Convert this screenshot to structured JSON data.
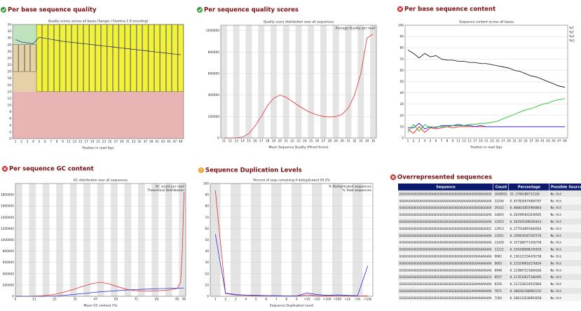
{
  "chart_data": [
    {
      "type": "boxplot",
      "heading": "Per base sequence quality",
      "title": "Quality scores across all bases (Sanger / Illumina 1.9 encoding)",
      "x_label": "Position in read (bp)",
      "categories": [
        "1",
        "2",
        "3",
        "4",
        "5",
        "6",
        "7",
        "8",
        "9",
        "11",
        "13",
        "15",
        "17",
        "19",
        "21",
        "23",
        "25",
        "27",
        "29",
        "31",
        "33",
        "35",
        "37",
        "39",
        "41",
        "43",
        "45",
        "47",
        "49"
      ],
      "bands": [
        {
          "from": 0,
          "to": 14,
          "color": "#e8b4b4"
        },
        {
          "from": 14,
          "to": 28,
          "color": "#e6d0a8"
        },
        {
          "from": 28,
          "to": 34,
          "color": "#bfe3bf"
        }
      ],
      "box_color": "#f2f23a",
      "box_low": [
        20,
        20,
        20,
        20,
        14,
        14,
        14,
        14,
        14,
        14,
        14,
        14,
        14,
        14,
        14,
        14,
        14,
        14,
        14,
        14,
        14,
        14,
        14,
        14,
        14,
        14,
        14,
        14,
        14
      ],
      "box_high": [
        28,
        28,
        28,
        28,
        34,
        34,
        34,
        34,
        34,
        34,
        34,
        34,
        34,
        34,
        34,
        34,
        34,
        34,
        34,
        34,
        34,
        34,
        34,
        34,
        34,
        34,
        34,
        34,
        34
      ],
      "line_color": "#202060",
      "mean": [
        29.5,
        28.8,
        28.5,
        28.3,
        30.2,
        29.9,
        29.6,
        29.3,
        29,
        28.8,
        28.6,
        28.4,
        28.2,
        28,
        27.8,
        27.6,
        27.4,
        27.2,
        27,
        26.8,
        26.6,
        26.4,
        26.2,
        26,
        25.8,
        25.6,
        25.4,
        25.2,
        25
      ],
      "ylim": [
        0,
        34
      ],
      "yticks": [
        0,
        2,
        4,
        6,
        8,
        10,
        12,
        14,
        16,
        18,
        20,
        22,
        24,
        26,
        28,
        30,
        32,
        34
      ]
    },
    {
      "type": "line",
      "heading": "Per sequence quality scores",
      "title": "Quality score distribution over all sequences",
      "x_label": "Mean Sequence Quality (Phred Score)",
      "categories": [
        "11",
        "12",
        "13",
        "14",
        "15",
        "16",
        "17",
        "18",
        "19",
        "20",
        "21",
        "22",
        "23",
        "24",
        "25",
        "26",
        "27",
        "28",
        "29",
        "30",
        "31",
        "32",
        "33",
        "34",
        "35"
      ],
      "series": [
        {
          "name": "Average Quality per read",
          "color": "#e03030",
          "values": [
            0,
            0,
            1000,
            8000,
            40000,
            110000,
            200000,
            300000,
            370000,
            400000,
            380000,
            340000,
            300000,
            265000,
            235000,
            215000,
            200000,
            195000,
            200000,
            220000,
            280000,
            400000,
            600000,
            930000,
            970000
          ]
        }
      ],
      "ylim": [
        0,
        1050000
      ],
      "yticks": [
        0,
        200000,
        400000,
        600000,
        800000,
        1000000
      ],
      "legend": "top-right",
      "grid": true
    },
    {
      "type": "line",
      "heading": "Per base sequence content",
      "title": "Sequence content across all bases",
      "x_label": "Position in read (bp)",
      "categories": [
        "1",
        "2",
        "3",
        "4",
        "5",
        "6",
        "7",
        "8",
        "9",
        "11",
        "13",
        "15",
        "17",
        "19",
        "21",
        "23",
        "25",
        "27",
        "29",
        "31",
        "33",
        "35",
        "37",
        "39",
        "41",
        "43",
        "45",
        "47",
        "49"
      ],
      "series": [
        {
          "name": "%T",
          "color": "#ff0000",
          "values": [
            8,
            4,
            10,
            5,
            9,
            8,
            9,
            10,
            9,
            10,
            10,
            10,
            10,
            10,
            10,
            10,
            10,
            10,
            10,
            10,
            10,
            10,
            10,
            10,
            10,
            10,
            10,
            10,
            10
          ]
        },
        {
          "name": "%C",
          "color": "#0000ff",
          "values": [
            9,
            9,
            13,
            8,
            10,
            9,
            11,
            11,
            11,
            12,
            11,
            11,
            10,
            11,
            10,
            10,
            10,
            10,
            10,
            10,
            10,
            10,
            10,
            10,
            10,
            10,
            10,
            10,
            10
          ]
        },
        {
          "name": "%A",
          "color": "#00c000",
          "values": [
            5,
            12,
            6,
            12,
            9,
            10,
            10,
            10,
            11,
            11,
            11,
            12,
            12,
            13,
            13,
            14,
            15,
            17,
            19,
            21,
            23,
            25,
            26,
            28,
            30,
            31,
            33,
            34,
            35
          ]
        },
        {
          "name": "%G",
          "color": "#000000",
          "values": [
            78,
            75,
            71,
            75,
            72,
            73,
            70,
            69,
            69,
            68,
            68,
            67,
            67,
            66,
            66,
            65,
            64,
            63,
            62,
            60,
            59,
            57,
            55,
            54,
            52,
            50,
            48,
            46,
            45
          ]
        }
      ],
      "ylim": [
        0,
        100
      ],
      "yticks": [
        0,
        10,
        20,
        30,
        40,
        50,
        60,
        70,
        80,
        90,
        100
      ],
      "legend": "right",
      "grid": true
    },
    {
      "type": "line",
      "heading": "Per sequence GC content",
      "title": "GC distribution over all sequences",
      "x_label": "Mean GC content (%)",
      "x": [
        0,
        5,
        10,
        15,
        20,
        25,
        30,
        35,
        40,
        45,
        50,
        55,
        60,
        65,
        70,
        75,
        80,
        85,
        90,
        95,
        97,
        98,
        99
      ],
      "series": [
        {
          "name": "GC count per read",
          "color": "#e03030",
          "values": [
            0,
            0,
            2000,
            8000,
            20000,
            45000,
            85000,
            130000,
            180000,
            225000,
            250000,
            220000,
            170000,
            125000,
            100000,
            95000,
            95000,
            100000,
            110000,
            140000,
            250000,
            800000,
            1850000
          ]
        },
        {
          "name": "Theoretical Distribution",
          "color": "#3030e0",
          "values": [
            0,
            0,
            0,
            0,
            2000,
            8000,
            20000,
            35000,
            50000,
            65000,
            80000,
            90000,
            100000,
            110000,
            118000,
            125000,
            130000,
            135000,
            140000,
            143000,
            145000,
            146000,
            147000
          ]
        }
      ],
      "xlim": [
        0,
        100
      ],
      "xticks": [
        0,
        11,
        23,
        35,
        47,
        59,
        71,
        83,
        95,
        99
      ],
      "ylim": [
        0,
        2000000
      ],
      "yticks": [
        0,
        200000,
        400000,
        600000,
        800000,
        1000000,
        1200000,
        1400000,
        1600000,
        1800000
      ],
      "legend": "top-right",
      "grid": true
    },
    {
      "type": "line",
      "heading": "Sequence Duplication Levels",
      "title": "Percent of seqs remaining if deduplicated 59.2%",
      "x_label": "Sequence Duplication Level",
      "categories": [
        "1",
        "2",
        "3",
        "4",
        "5",
        "6",
        "7",
        "8",
        "9",
        ">10",
        ">50",
        ">100",
        ">500",
        ">1k",
        ">5k",
        ">10k"
      ],
      "series": [
        {
          "name": "% Deduplicated sequences",
          "color": "#e03030",
          "values": [
            94,
            2.5,
            1.2,
            0.8,
            0.5,
            0.4,
            0.3,
            0.3,
            0.2,
            1.2,
            0.5,
            0.3,
            0.3,
            0.2,
            0.1,
            0.5
          ]
        },
        {
          "name": "% Total sequences",
          "color": "#3030e0",
          "values": [
            55,
            2.8,
            1.5,
            1,
            0.8,
            0.6,
            0.5,
            0.4,
            0.3,
            3,
            1.5,
            0.8,
            1.2,
            0.8,
            0.5,
            27
          ]
        }
      ],
      "ylim": [
        0,
        100
      ],
      "yticks": [
        0,
        10,
        20,
        30,
        40,
        50,
        60,
        70,
        80,
        90,
        100
      ],
      "legend": "top-right",
      "grid": true
    }
  ],
  "table": {
    "heading": "Overrepresented sequences",
    "columns": [
      "Sequence",
      "Count",
      "Percentage",
      "Possible Source"
    ],
    "rows": [
      [
        "GGGGGGGGGGGGGGGGGGGGGGGGGGGGGGGGGGGGGGGGGGGGGGGGGG",
        1838931,
        "25.2796180732126",
        "No Hit"
      ],
      [
        "AAAAAAAAAAAAAAAAAAAAAAAAAAAAAAAAAAAAAAAAAAAAAAAAAA",
        33246,
        "0.457026974004787",
        "No Hit"
      ],
      [
        "GGGGGGGGGGGGGGGGGGGGGGGGGGGGGGGGGGGGGGGGGGGGGGGGGA",
        29142,
        "0.400616855904864",
        "No Hit"
      ],
      [
        "GGGGGGGGGGGGGGGGGGGGGGGGGGGGGGGGGGGGGGGGGGGGGGGGAA",
        14693,
        "0.201985842039565",
        "No Hit"
      ],
      [
        "GGGGGGGGGGGGGGGGGGGGGGGGGGGGGGGGGGGGGGGGGGGGGGGAAA",
        13353,
        "0.183565398282014",
        "No Hit"
      ],
      [
        "GGGGGGGGGGGGGGGGGGGGGGGGGGGGGGGGGGGGGGGGGGGGGGGGGC",
        12913,
        "0.177516891684503",
        "No Hit"
      ],
      [
        "GGGGGGGGGGGGGGGGGGGGGGGGGGGGGGGGGGGGGGGGGGGGGGAAAA",
        11561,
        "0.158929187207576",
        "No Hit"
      ],
      [
        "GGGGGGGGGGGGGGGGGGGGGGGGGGGGGGGGGGGGGGGGGGGGGAAAAA",
        11428,
        "0.157100771456758",
        "No Hit"
      ],
      [
        "GGGGGGGGGGGGGGGGGGGGGGGGGGGGGGGGGGGGGGGGGGGGAAAAAA",
        11222,
        "0.154268900245929",
        "No Hit"
      ],
      [
        "GGGGGGGGGGGGGGGGGGGGGGGGGGGGGGGGGGGGGGGGGGGAAAAAAA",
        9902,
        "0.136122334476738",
        "No Hit"
      ],
      [
        "GGGGGGGGGGGGGGGGGGGGGGGGGGGGGGGGGGGGGGGGGGAAAAAAAA",
        9693,
        "0.133249018276834",
        "No Hit"
      ],
      [
        "GGGGGGGGGGGGGGGGGGGGGGGGGGGGGGGGGGGGGGGGGAAAAAAAAA",
        8948,
        "0.123007521604266",
        "No Hit"
      ],
      [
        "GGGGGGGGGGGGGGGGGGGGGGGGGGGGGGGGGGGGGGGGGGGGGGGGCG",
        8557,
        "0.117632637346495",
        "No Hit"
      ],
      [
        "GGGGGGGGGGGGGGGGGGGGGGGGGGGGGGGGGGGGGGGGAAAAAAAAAA",
        8156,
        "0.112120224932004",
        "No Hit"
      ],
      [
        "GGGGGGGGGGGGGGGGGGGGGGGGGGGGGGGGGGGGGGGAAAAAAAAAAA",
        7871,
        "0.108202380962232",
        "No Hit"
      ],
      [
        "GGGGGGGGGGGGGGGGGGGGGGGGGGGGGGGGGGGGGGAAAAAAAAAAAA",
        7284,
        "0.100132630983650",
        "No Hit"
      ]
    ]
  }
}
